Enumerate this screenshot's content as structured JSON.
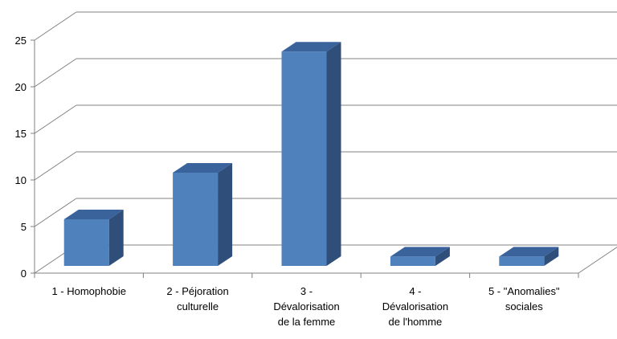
{
  "chart_data": {
    "type": "bar",
    "three_d": true,
    "categories": [
      [
        "1 - Homophobie"
      ],
      [
        "2 - Péjoration",
        "culturelle"
      ],
      [
        "3 -",
        "Dévalorisation",
        "de la femme"
      ],
      [
        "4 -",
        "Dévalorisation",
        "de l'homme"
      ],
      [
        "5 - \"Anomalies\"",
        "sociales"
      ]
    ],
    "values": [
      5,
      10,
      23,
      1,
      1
    ],
    "ylim": [
      0,
      25
    ],
    "yticks": [
      "0",
      "5",
      "10",
      "15",
      "20",
      "25"
    ],
    "grid": true,
    "legend": "none",
    "title": "",
    "xlabel": "",
    "ylabel": "",
    "colors": {
      "front": "#4f81bd",
      "side": "#2f4f7a",
      "top": "#3a629b",
      "grid": "#808080"
    }
  }
}
